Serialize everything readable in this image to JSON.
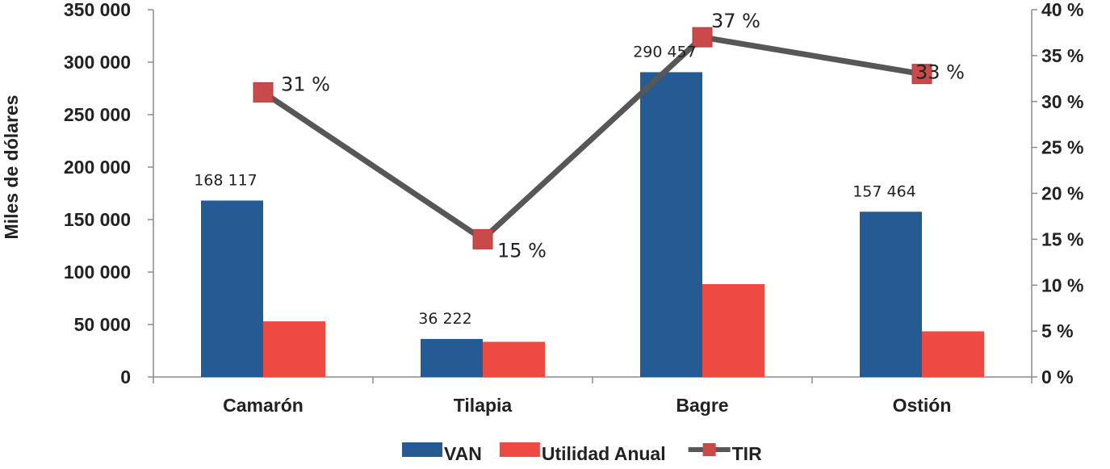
{
  "chart_data": {
    "type": "bar",
    "categories": [
      "Camarón",
      "Tilapia",
      "Bagre",
      "Ostión"
    ],
    "series": [
      {
        "name": "VAN",
        "axis": "left",
        "type": "bar",
        "color": "#255B92",
        "values": [
          168117,
          36222,
          290457,
          157464
        ],
        "labels": [
          "168 117",
          "36 222",
          "290 457",
          "157 464"
        ]
      },
      {
        "name": "Utilidad Anual",
        "axis": "left",
        "type": "bar",
        "color": "#EE4A43",
        "values": [
          53000,
          33500,
          88500,
          43500
        ]
      },
      {
        "name": "TIR",
        "axis": "right",
        "type": "line",
        "color": "#575757",
        "marker_color": "#C94A4B",
        "values": [
          31,
          15,
          37,
          33
        ],
        "labels": [
          "31 %",
          "15 %",
          "37 %",
          "33 %"
        ]
      }
    ],
    "ylabel": "Miles de dólares",
    "ylim": [
      0,
      350000
    ],
    "y_ticks": [
      "0",
      "50 000",
      "100 000",
      "150 000",
      "200 000",
      "250 000",
      "300 000",
      "350 000"
    ],
    "y2lim": [
      0,
      40
    ],
    "y2_ticks": [
      "0 %",
      "5 %",
      "10 %",
      "15 %",
      "20 %",
      "25 %",
      "30 %",
      "35 %",
      "40 %"
    ],
    "legend": [
      "VAN",
      "Utilidad Anual",
      "TIR"
    ],
    "legend_position": "bottom",
    "grid": false
  }
}
